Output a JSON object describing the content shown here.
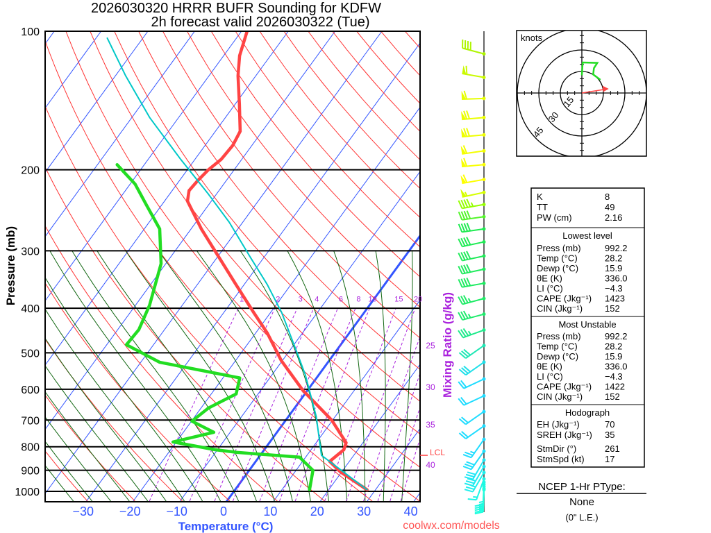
{
  "title": {
    "line1": "2026030320 HRRR BUFR Sounding for KDFW",
    "line2": "2h forecast valid 2026030322 (Tue)"
  },
  "colors": {
    "temperature": "#ff4444",
    "dewpoint": "#22dd22",
    "parcel": "#00c8c8",
    "isotherm": "#3355ff",
    "dry_adiabat": "#ff3333",
    "moist_adiabat": "#116611",
    "mixing_ratio": "#aa22dd",
    "watermark": "#ff5555"
  },
  "chart_data": {
    "type": "line",
    "subtype": "skew-T log-P",
    "title": "2026030320 HRRR BUFR Sounding for KDFW — 2h forecast valid 2026030322 (Tue)",
    "xlabel": "Temperature (°C)",
    "ylabel": "Pressure (mb)",
    "y2label": "Mixing Ratio (g/kg)",
    "xlim": [
      -40,
      42
    ],
    "ylim": [
      1050,
      100
    ],
    "x_ticks": [
      "−30",
      "−20",
      "−10",
      "0",
      "10",
      "20",
      "30",
      "40"
    ],
    "x_tick_values": [
      -30,
      -20,
      -10,
      0,
      10,
      20,
      30,
      40
    ],
    "y_ticks": [
      "100",
      "200",
      "300",
      "400",
      "500",
      "600",
      "700",
      "800",
      "900",
      "1000"
    ],
    "y_tick_values": [
      100,
      200,
      300,
      400,
      500,
      600,
      700,
      800,
      900,
      1000
    ],
    "mixing_ratio_labels": [
      "1",
      "2",
      "3",
      "4",
      "6",
      "8",
      "10",
      "15",
      "20"
    ],
    "mixing_ratio_values": [
      1,
      2,
      3,
      4,
      6,
      8,
      10,
      15,
      20
    ],
    "mixing_ratio_side_labels": [
      "25",
      "30",
      "35",
      "40"
    ],
    "mixing_ratio_side_values": [
      25,
      30,
      35,
      40
    ],
    "lcl_label": "LCL",
    "lcl_pressure": 835,
    "series": [
      {
        "name": "Temperature",
        "pressure": [
          992,
          907,
          861,
          812,
          784,
          700,
          603,
          520,
          453,
          408,
          355,
          309,
          269,
          234,
          222,
          211,
          200,
          190,
          177,
          165,
          144,
          125,
          113,
          100
        ],
        "temp_c": [
          28.2,
          19.7,
          15.8,
          17.0,
          16.4,
          9.8,
          -1.0,
          -10.2,
          -17.5,
          -23.7,
          -31.8,
          -39.8,
          -47.8,
          -55.1,
          -56.4,
          -56.1,
          -55.5,
          -54.4,
          -54.1,
          -54.7,
          -59.1,
          -63.8,
          -66.6,
          -68.8
        ]
      },
      {
        "name": "Dewpoint",
        "pressure": [
          992,
          900,
          843,
          823,
          812,
          781,
          744,
          704,
          659,
          614,
          567,
          524,
          480,
          445,
          394,
          320,
          269,
          238,
          215,
          195
        ],
        "temp_c": [
          15.9,
          13.6,
          8.7,
          -5.3,
          -10.5,
          -20.7,
          -13.5,
          -19.9,
          -18.4,
          -14.7,
          -16.4,
          -36.0,
          -45.8,
          -45.5,
          -47.0,
          -51.0,
          -56.7,
          -63.4,
          -68.9,
          -75.8
        ]
      },
      {
        "name": "Parcel",
        "pressure": [
          992,
          835,
          687,
          558,
          486,
          408,
          355,
          309,
          260,
          226,
          190,
          154,
          125,
          103.5
        ],
        "temp_c": [
          28.2,
          13.1,
          5.9,
          -2.9,
          -9.4,
          -17.7,
          -25.1,
          -33.1,
          -42.9,
          -51.7,
          -63.0,
          -76.2,
          -87.8,
          -97.6
        ]
      }
    ],
    "wind_barbs": [
      {
        "p": 112,
        "dir": 285,
        "kt": 40
      },
      {
        "p": 126,
        "dir": 280,
        "kt": 60
      },
      {
        "p": 140,
        "dir": 268,
        "kt": 60
      },
      {
        "p": 154,
        "dir": 265,
        "kt": 70
      },
      {
        "p": 168,
        "dir": 265,
        "kt": 70
      },
      {
        "p": 182,
        "dir": 262,
        "kt": 60
      },
      {
        "p": 195,
        "dir": 265,
        "kt": 60
      },
      {
        "p": 210,
        "dir": 260,
        "kt": 60
      },
      {
        "p": 224,
        "dir": 258,
        "kt": 55
      },
      {
        "p": 238,
        "dir": 260,
        "kt": 45
      },
      {
        "p": 253,
        "dir": 262,
        "kt": 40
      },
      {
        "p": 269,
        "dir": 262,
        "kt": 40
      },
      {
        "p": 287,
        "dir": 258,
        "kt": 40
      },
      {
        "p": 308,
        "dir": 258,
        "kt": 40
      },
      {
        "p": 329,
        "dir": 258,
        "kt": 40
      },
      {
        "p": 353,
        "dir": 260,
        "kt": 40
      },
      {
        "p": 381,
        "dir": 255,
        "kt": 35
      },
      {
        "p": 412,
        "dir": 255,
        "kt": 35
      },
      {
        "p": 446,
        "dir": 250,
        "kt": 35
      },
      {
        "p": 482,
        "dir": 235,
        "kt": 30
      },
      {
        "p": 524,
        "dir": 235,
        "kt": 30
      },
      {
        "p": 570,
        "dir": 245,
        "kt": 20
      },
      {
        "p": 620,
        "dir": 245,
        "kt": 20
      },
      {
        "p": 671,
        "dir": 235,
        "kt": 20
      },
      {
        "p": 721,
        "dir": 235,
        "kt": 20
      },
      {
        "p": 771,
        "dir": 215,
        "kt": 25
      },
      {
        "p": 818,
        "dir": 215,
        "kt": 30
      },
      {
        "p": 855,
        "dir": 210,
        "kt": 30
      },
      {
        "p": 883,
        "dir": 210,
        "kt": 30
      },
      {
        "p": 910,
        "dir": 210,
        "kt": 25
      },
      {
        "p": 940,
        "dir": 200,
        "kt": 15
      },
      {
        "p": 955,
        "dir": 182,
        "kt": 15
      },
      {
        "p": 965,
        "dir": 182,
        "kt": 15
      },
      {
        "p": 975,
        "dir": 182,
        "kt": 15
      },
      {
        "p": 985,
        "dir": 182,
        "kt": 15
      },
      {
        "p": 992,
        "dir": 182,
        "kt": 15
      }
    ],
    "hodograph": {
      "units_label": "knots",
      "ring_labels": [
        "15",
        "30",
        "45"
      ],
      "ring_values": [
        15,
        30,
        45
      ],
      "u_kt": [
        0,
        0.6,
        10.8,
        8.4,
        7.9,
        12.9
      ],
      "v_kt": [
        12.4,
        21.3,
        21.0,
        17.3,
        12.9,
        9.2
      ],
      "storm_motion_dir": 261,
      "storm_motion_kt": 17
    }
  },
  "indices": {
    "rows": [
      {
        "label": "K",
        "value": "8"
      },
      {
        "label": "TT",
        "value": "49"
      },
      {
        "label": "PW (cm)",
        "value": "2.16"
      }
    ]
  },
  "lowest_level": {
    "heading": "Lowest level",
    "rows": [
      {
        "label": "Press (mb)",
        "value": "992.2"
      },
      {
        "label": "Temp (°C)",
        "value": "28.2"
      },
      {
        "label": "Dewp (°C)",
        "value": "15.9"
      },
      {
        "label": "θE (K)",
        "value": "336.0"
      },
      {
        "label": "LI (°C)",
        "value": "−4.3"
      },
      {
        "label": "CAPE (Jkg⁻¹)",
        "value": "1423"
      },
      {
        "label": "CIN (Jkg⁻¹)",
        "value": "152"
      }
    ]
  },
  "most_unstable": {
    "heading": "Most Unstable",
    "rows": [
      {
        "label": "Press (mb)",
        "value": "992.2"
      },
      {
        "label": "Temp (°C)",
        "value": "28.2"
      },
      {
        "label": "Dewp (°C)",
        "value": "15.9"
      },
      {
        "label": "θE (K)",
        "value": "336.0"
      },
      {
        "label": "LI (°C)",
        "value": "−4.3"
      },
      {
        "label": "CAPE (Jkg⁻¹)",
        "value": "1422"
      },
      {
        "label": "CIN (Jkg⁻¹)",
        "value": "152"
      }
    ]
  },
  "hodograph_stats": {
    "heading": "Hodograph",
    "rows": [
      {
        "label": "EH (Jkg⁻¹)",
        "value": "70"
      },
      {
        "label": "SREH (Jkg⁻¹)",
        "value": "35"
      },
      {
        "label": "StmDir (°)",
        "value": "261"
      },
      {
        "label": "StmSpd (kt)",
        "value": "17"
      }
    ]
  },
  "ptype": {
    "heading": "NCEP 1-Hr PType:",
    "value": "None",
    "amount": "(0\" L.E.)"
  },
  "watermark": "coolwx.com/models"
}
